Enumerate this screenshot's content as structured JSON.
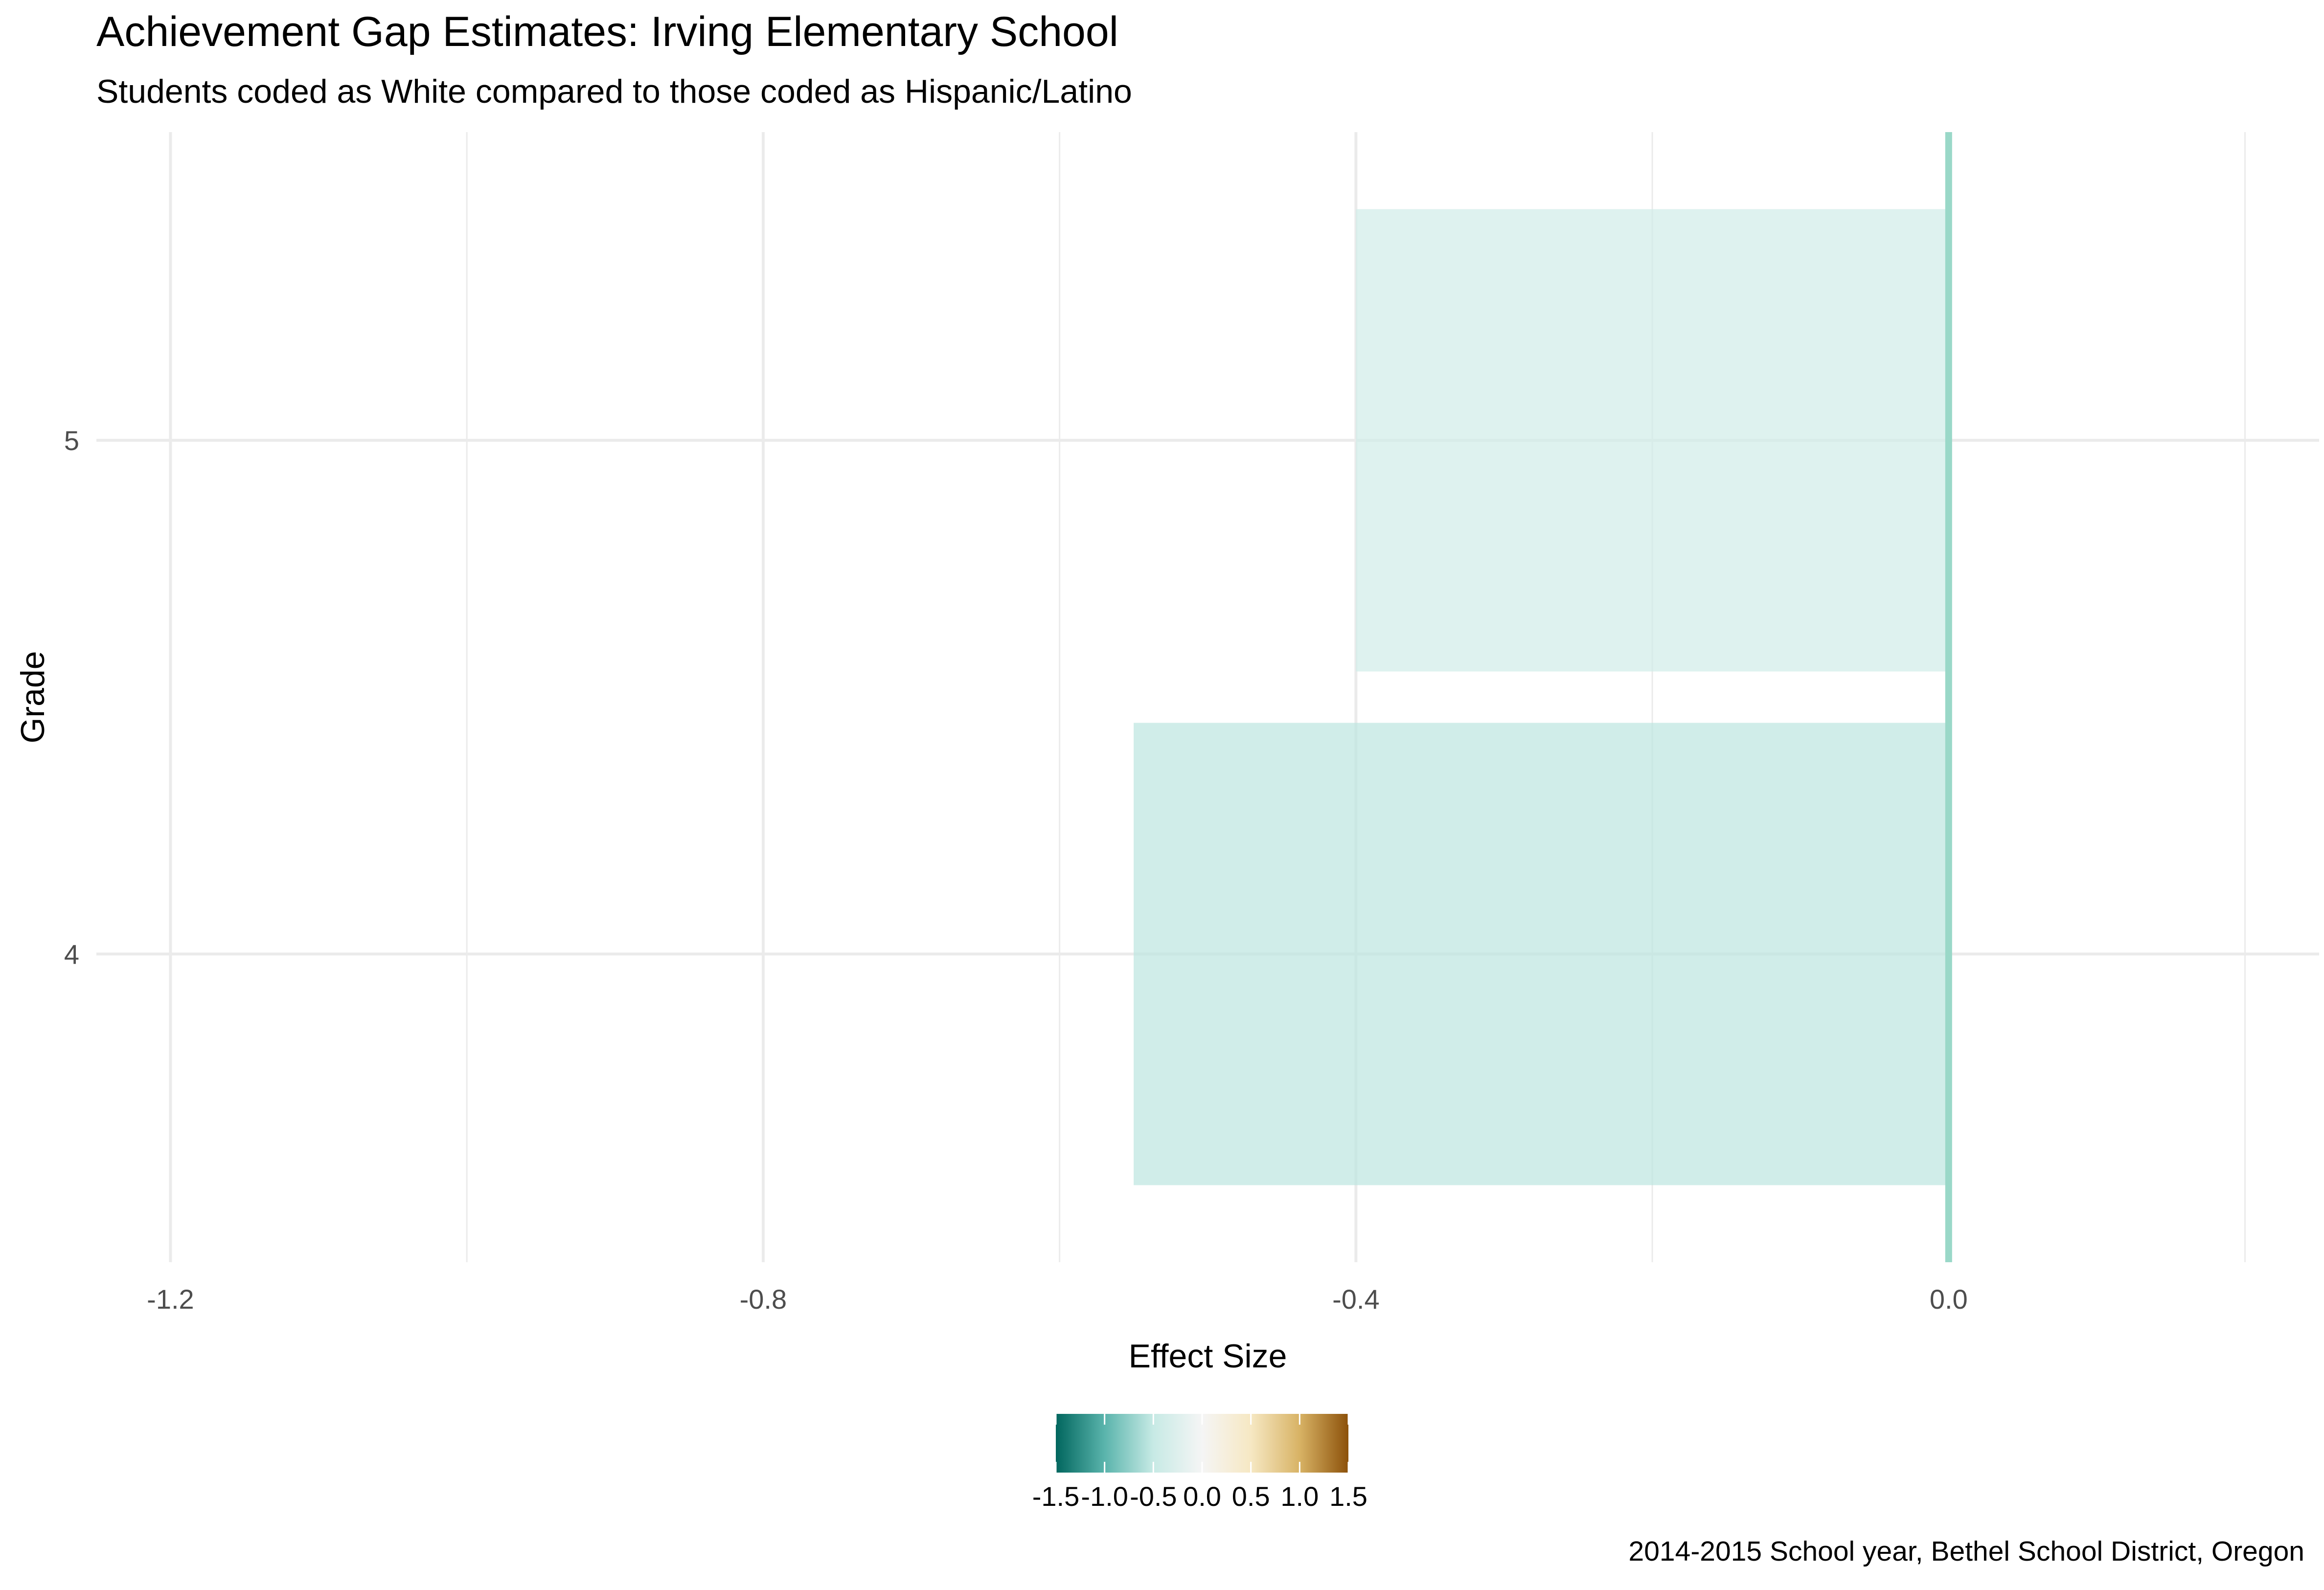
{
  "chart_data": {
    "type": "bar",
    "orientation": "horizontal",
    "title": "Achievement Gap Estimates: Irving Elementary School",
    "subtitle": "Students coded as White compared to those coded as Hispanic/Latino",
    "caption": "2014-2015 School year, Bethel School District, Oregon",
    "xlabel": "Effect Size",
    "ylabel": "Grade",
    "categories": [
      "4",
      "5"
    ],
    "values": [
      -0.55,
      -0.4
    ],
    "xlim": [
      -1.25,
      0.25
    ],
    "x_ticks": [
      -1.2,
      -0.8,
      -0.4,
      0.0
    ],
    "x_tick_labels": [
      "-1.2",
      "-0.8",
      "-0.4",
      "0.0"
    ],
    "reference_line": 0,
    "grid": true,
    "legend": {
      "position": "bottom",
      "type": "colorbar",
      "range": [
        -1.5,
        1.5
      ],
      "tick_labels": [
        "-1.5",
        "-1.0",
        "-0.5",
        "0.0",
        "0.5",
        "1.0",
        "1.5"
      ],
      "palette": [
        "#01665e",
        "#5ab4ac",
        "#c7eae5",
        "#f5f5f5",
        "#f6e8c3",
        "#d8b365",
        "#8c510a"
      ]
    },
    "colors": {
      "grid": "#ebebeb",
      "reference_line": "#9ad8c8",
      "text": "#4d4d4d",
      "bar_fill_opacity": 0.7
    }
  }
}
